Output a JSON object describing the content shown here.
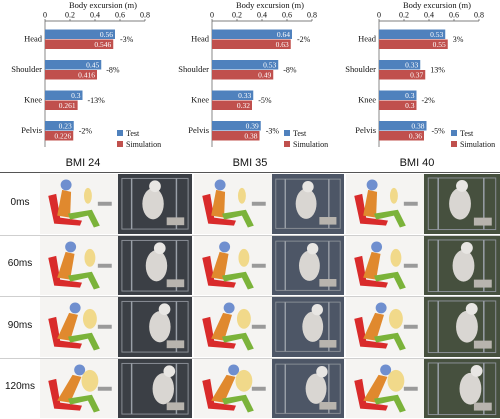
{
  "chart_data": [
    {
      "type": "bar",
      "orientation": "horizontal",
      "xlabel": "Body excursion (m)",
      "title": "BMI 24",
      "categories": [
        "Head",
        "Shoulder",
        "Knee",
        "Pelvis"
      ],
      "xlim": [
        0,
        0.8
      ],
      "xticks": [
        "0",
        "0.2",
        "0.4",
        "0.6",
        "0.8"
      ],
      "series": [
        {
          "name": "Test",
          "values": [
            0.56,
            0.45,
            0.3,
            0.23
          ],
          "labels": [
            "0.56",
            "0.45",
            "0.3",
            "0.23"
          ]
        },
        {
          "name": "Simulation",
          "values": [
            0.546,
            0.416,
            0.261,
            0.226
          ],
          "labels": [
            "0.546",
            "0.416",
            "0.261",
            "0.226"
          ]
        }
      ],
      "differences": [
        "-3%",
        "-8%",
        "-13%",
        "-2%"
      ],
      "legend": "bottom-right"
    },
    {
      "type": "bar",
      "orientation": "horizontal",
      "xlabel": "Body excursion (m)",
      "title": "BMI 35",
      "categories": [
        "Head",
        "Shoulder",
        "Knee",
        "Pelvis"
      ],
      "xlim": [
        0,
        0.8
      ],
      "xticks": [
        "0",
        "0.2",
        "0.4",
        "0.6",
        "0.8"
      ],
      "series": [
        {
          "name": "Test",
          "values": [
            0.64,
            0.53,
            0.33,
            0.39
          ],
          "labels": [
            "0.64",
            "0.53",
            "0.33",
            "0.39"
          ]
        },
        {
          "name": "Simulation",
          "values": [
            0.63,
            0.49,
            0.32,
            0.38
          ],
          "labels": [
            "0.63",
            "0.49",
            "0.32",
            "0.38"
          ]
        }
      ],
      "differences": [
        "-2%",
        "-8%",
        "-5%",
        "-3%"
      ],
      "legend": "bottom-right"
    },
    {
      "type": "bar",
      "orientation": "horizontal",
      "xlabel": "Body excursion (m)",
      "title": "BMI 40",
      "categories": [
        "Head",
        "Shoulder",
        "Knee",
        "Pelvis"
      ],
      "xlim": [
        0,
        0.8
      ],
      "xticks": [
        "0",
        "0.2",
        "0.4",
        "0.6",
        "0.8"
      ],
      "series": [
        {
          "name": "Test",
          "values": [
            0.53,
            0.33,
            0.3,
            0.38
          ],
          "labels": [
            "0.53",
            "0.33",
            "0.3",
            "0.38"
          ]
        },
        {
          "name": "Simulation",
          "values": [
            0.55,
            0.37,
            0.3,
            0.36
          ],
          "labels": [
            "0.55",
            "0.37",
            "0.3",
            "0.36"
          ]
        }
      ],
      "differences": [
        "3%",
        "13%",
        "-2%",
        "-5%"
      ],
      "legend": "bottom-right"
    }
  ],
  "colors": {
    "test": "#4f81bd",
    "simulation": "#c0504d"
  },
  "frames": {
    "times": [
      "0ms",
      "60ms",
      "90ms",
      "120ms"
    ],
    "conditions": [
      "BMI 24",
      "BMI 35",
      "BMI 40"
    ]
  }
}
